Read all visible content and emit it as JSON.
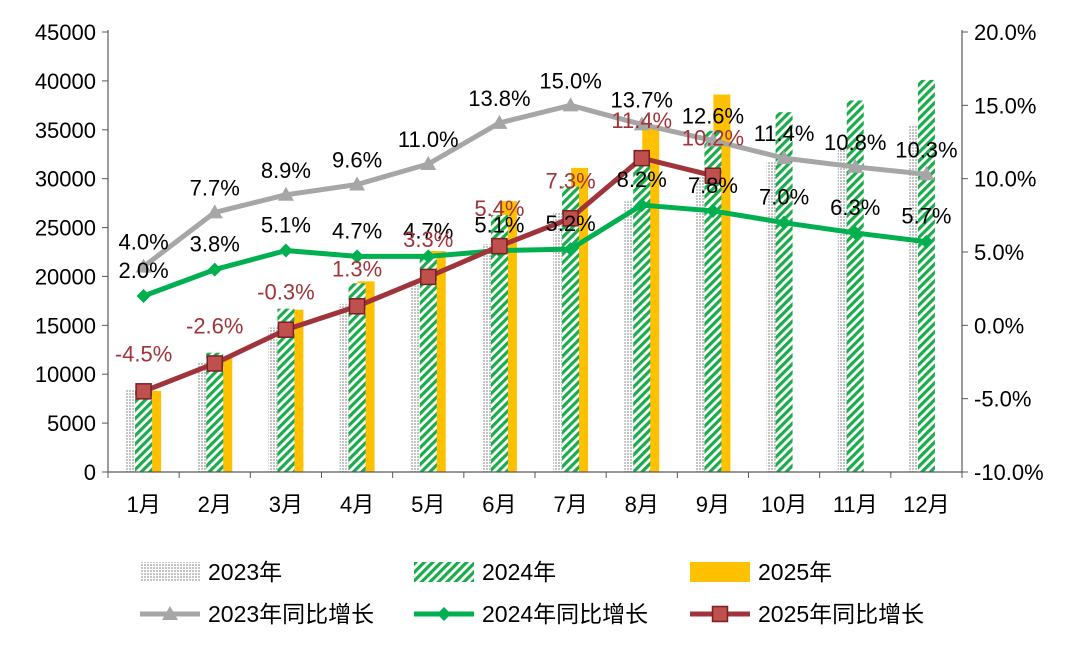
{
  "chart_data": {
    "type": "bar",
    "categories": [
      "1月",
      "2月",
      "3月",
      "4月",
      "5月",
      "6月",
      "7月",
      "8月",
      "9月",
      "10月",
      "11月",
      "12月"
    ],
    "series": [
      {
        "name": "2023年",
        "kind": "bar",
        "axis": "left",
        "values": [
          8400,
          11200,
          14800,
          17200,
          19500,
          23300,
          26500,
          27700,
          30200,
          31800,
          33300,
          35500
        ]
      },
      {
        "name": "2024年",
        "kind": "bar",
        "axis": "left",
        "values": [
          8700,
          12200,
          16700,
          19300,
          22000,
          26300,
          29200,
          31800,
          34900,
          36800,
          38000,
          40100
        ]
      },
      {
        "name": "2025年",
        "kind": "bar",
        "axis": "left",
        "values": [
          8300,
          11800,
          16600,
          19500,
          22600,
          27700,
          31100,
          35500,
          38600,
          null,
          null,
          null
        ]
      },
      {
        "name": "2023年同比增长",
        "kind": "line",
        "axis": "right",
        "values": [
          4.0,
          7.7,
          8.9,
          9.6,
          11.0,
          13.8,
          15.0,
          13.7,
          12.6,
          11.4,
          10.8,
          10.3
        ],
        "labels": [
          "4.0%",
          "7.7%",
          "8.9%",
          "9.6%",
          "11.0%",
          "13.8%",
          "15.0%",
          "13.7%",
          "12.6%",
          "11.4%",
          "10.8%",
          "10.3%"
        ]
      },
      {
        "name": "2024年同比增长",
        "kind": "line",
        "axis": "right",
        "values": [
          2.0,
          3.8,
          5.1,
          4.7,
          4.7,
          5.1,
          5.2,
          8.2,
          7.8,
          7.0,
          6.3,
          5.7
        ],
        "labels": [
          "2.0%",
          "3.8%",
          "5.1%",
          "4.7%",
          "4.7%",
          "5.1%",
          "5.2%",
          "8.2%",
          "7.8%",
          "7.0%",
          "6.3%",
          "5.7%"
        ]
      },
      {
        "name": "2025年同比增长",
        "kind": "line",
        "axis": "right",
        "values": [
          -4.5,
          -2.6,
          -0.3,
          1.3,
          3.3,
          5.4,
          7.3,
          11.4,
          10.2,
          null,
          null,
          null
        ],
        "labels": [
          "-4.5%",
          "-2.6%",
          "-0.3%",
          "1.3%",
          "3.3%",
          "5.4%",
          "7.3%",
          "11.4%",
          "10.2%",
          "",
          "",
          ""
        ]
      }
    ],
    "left_axis": {
      "min": 0,
      "max": 45000,
      "step": 5000,
      "ticks": [
        "0",
        "5000",
        "10000",
        "15000",
        "20000",
        "25000",
        "30000",
        "35000",
        "40000",
        "45000"
      ]
    },
    "right_axis": {
      "min": -10,
      "max": 20,
      "step": 5,
      "ticks": [
        "-10.0%",
        "-5.0%",
        "0.0%",
        "5.0%",
        "10.0%",
        "15.0%",
        "20.0%"
      ]
    },
    "title": "",
    "xlabel": "",
    "ylabel": "",
    "grid": false,
    "legend_position": "bottom",
    "colors": {
      "bar2023": "#d0d0d0",
      "bar2024": "#1aab4b",
      "bar2025": "#ffc000",
      "line2023": "#a6a6a6",
      "line2024": "#00b050",
      "line2025": "#a0343a",
      "label2023": "#000000",
      "label2024": "#000000",
      "label2025": "#a0343a",
      "axis": "#595959"
    }
  }
}
